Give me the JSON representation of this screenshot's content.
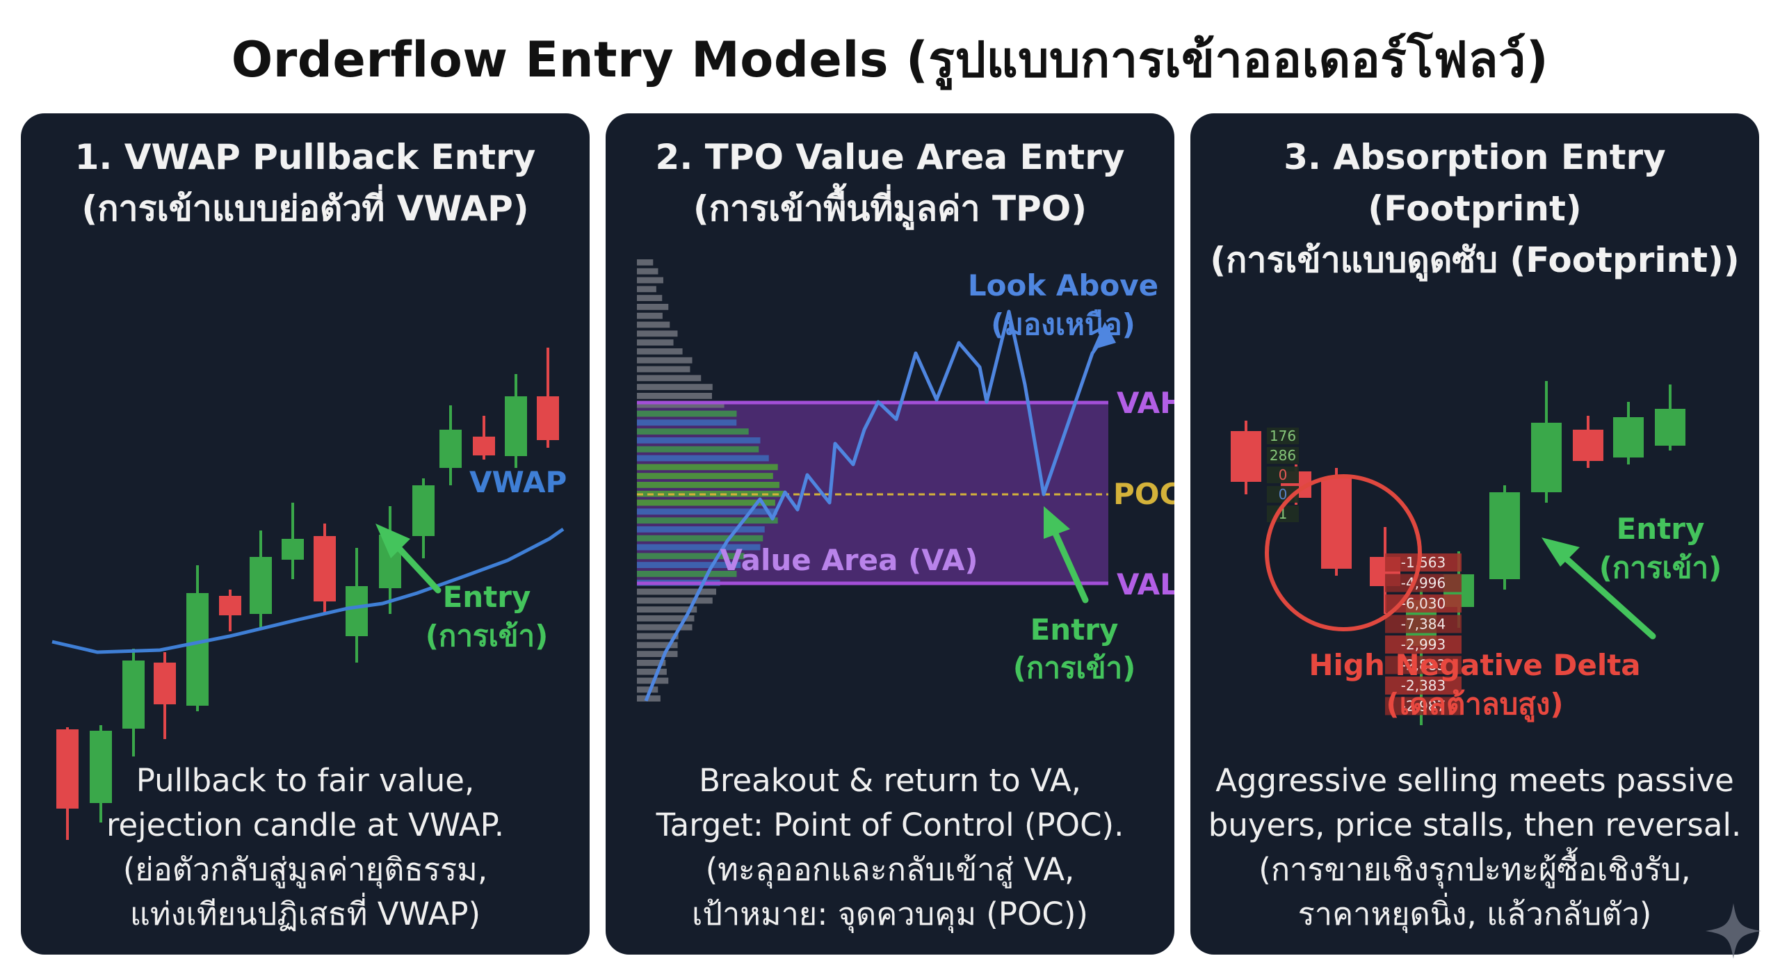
{
  "title": "Orderflow Entry Models (รูปแบบการเข้าออเดอร์โฟลว์)",
  "colors": {
    "panel_bg": "#151d2b",
    "bull": "#3aa84a",
    "bear": "#e2474a",
    "vwap": "#3f7fd6",
    "entry_arrow": "#44c45c",
    "value_area": "#5b2f86",
    "poc": "#d4b23a",
    "delta_red": "#e8483f"
  },
  "panels": [
    {
      "title_line1": "1. VWAP Pullback Entry",
      "title_line2": "(การเข้าแบบย่อตัวที่ VWAP)",
      "labels": {
        "vwap": "VWAP",
        "entry_line1": "Entry",
        "entry_line2": "(การเข้า)"
      },
      "desc": [
        "Pullback to fair value,",
        "rejection candle at VWAP.",
        "(ย่อตัวกลับสู่มูลค่ายุติธรรม,",
        "แท่งเทียนปฏิเสธที่ VWAP)"
      ]
    },
    {
      "title_line1": "2. TPO Value Area Entry",
      "title_line2": "(การเข้าพื้นที่มูลค่า TPO)",
      "labels": {
        "look_above_line1": "Look Above",
        "look_above_line2": "(มองเหนือ)",
        "vah": "VAH",
        "poc": "POC",
        "val": "VAL",
        "value_area": "Value Area (VA)",
        "entry_line1": "Entry",
        "entry_line2": "(การเข้า)"
      },
      "desc": [
        "Breakout & return to VA,",
        "Target: Point of Control (POC).",
        "(ทะลุออกและกลับเข้าสู่ VA,",
        "เป้าหมาย: จุดควบคุม (POC))"
      ]
    },
    {
      "title_line1": "3. Absorption Entry (Footprint)",
      "title_line2": "(การเข้าแบบดูดซับ (Footprint))",
      "footprint_top": [
        "176",
        "286",
        "0",
        "0",
        "1"
      ],
      "footprint_deltas": [
        "-1,563",
        "-4,996",
        "-6,030",
        "-7,384",
        "-2,993",
        "-2,883",
        "-2,383",
        "-2,987"
      ],
      "labels": {
        "high_negative_delta_line1": "High Negative Delta",
        "high_negative_delta_line2": "(เดลต้าลบสูง)",
        "entry_line1": "Entry",
        "entry_line2": "(การเข้า)"
      },
      "desc": [
        "Aggressive selling meets passive",
        "buyers, price stalls, then reversal.",
        "(การขายเชิงรุกปะทะผู้ซื้อเชิงรับ,",
        "ราคาหยุดนิ่ง, แล้วกลับตัว)"
      ]
    }
  ]
}
